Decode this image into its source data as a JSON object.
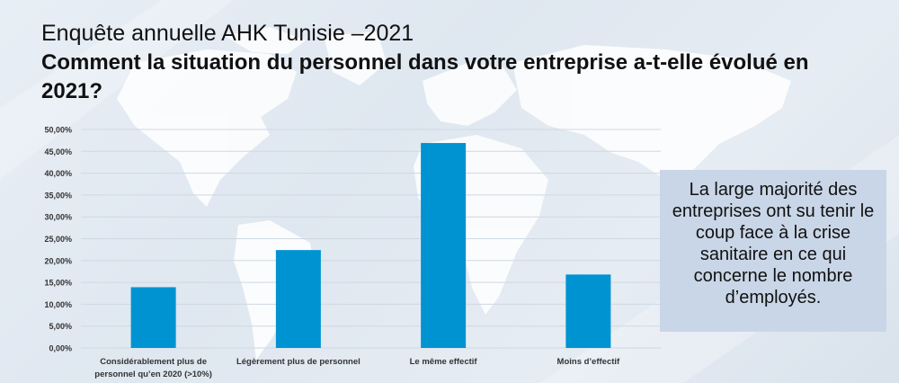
{
  "header": {
    "subtitle": "Enquête annuelle AHK Tunisie –2021",
    "title": "Comment la situation du personnel dans votre entreprise a-t-elle évolué en 2021?"
  },
  "callout": {
    "text": "La large majorité des entreprises ont su tenir le coup face à la crise sanitaire en ce qui concerne le nombre d’employés."
  },
  "colors": {
    "bar": "#0093d2",
    "grid": "#cfd8e2",
    "map": "#ffffff"
  },
  "chart_data": {
    "type": "bar",
    "categories": [
      [
        "Considérablement plus de",
        "personnel qu’en 2020 (>10%)"
      ],
      [
        "Légèrement plus de personnel"
      ],
      [
        "Le même effectif"
      ],
      [
        "Moins d’effectif"
      ]
    ],
    "values": [
      13.9,
      22.4,
      46.9,
      16.8
    ],
    "yticks": [
      "0,00%",
      "5,00%",
      "10,00%",
      "15,00%",
      "20,00%",
      "25,00%",
      "30,00%",
      "35,00%",
      "40,00%",
      "45,00%",
      "50,00%"
    ],
    "ylim": [
      0,
      50
    ],
    "grid": true
  }
}
